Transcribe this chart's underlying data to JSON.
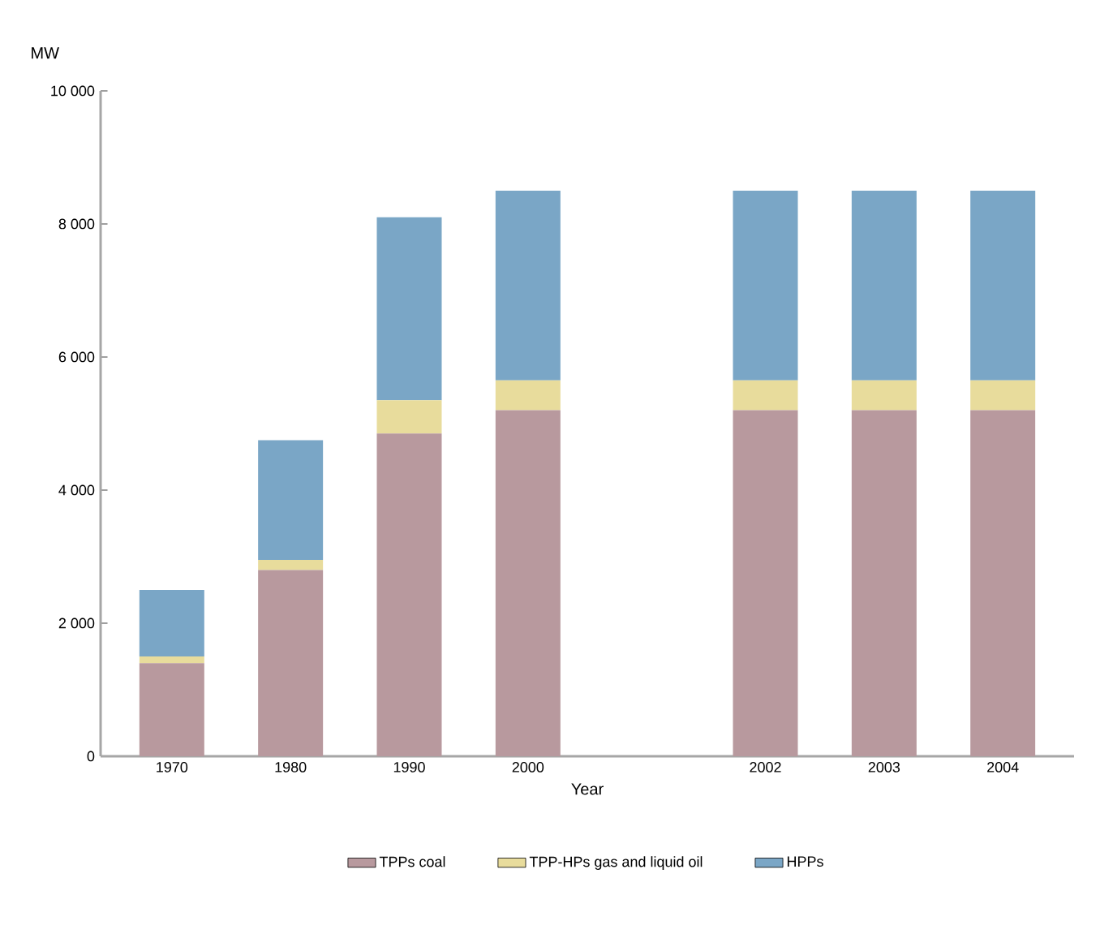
{
  "chart_data": {
    "type": "bar",
    "stacked": true,
    "ylabel": "MW",
    "xlabel": "Year",
    "categories": [
      "1970",
      "1980",
      "1990",
      "2000",
      null,
      "2002",
      "2003",
      "2004"
    ],
    "series": [
      {
        "name": "TPPs coal",
        "color": "#b8999e",
        "values": [
          1400,
          2800,
          4850,
          5200,
          null,
          5200,
          5200,
          5200
        ]
      },
      {
        "name": "TPP-HPs gas and liquid oil",
        "color": "#e8dc9c",
        "values": [
          100,
          150,
          500,
          450,
          null,
          450,
          450,
          450
        ]
      },
      {
        "name": "HPPs",
        "color": "#7aa6c6",
        "values": [
          1000,
          1800,
          2750,
          2850,
          null,
          2850,
          2850,
          2850
        ]
      }
    ],
    "ylim": [
      0,
      10000
    ],
    "yticks": [
      0,
      {
        "value": 2000,
        "label": "2 000"
      },
      {
        "value": 4000,
        "label": "4 000"
      },
      {
        "value": 6000,
        "label": "6 000"
      },
      {
        "value": 8000,
        "label": "8 000"
      },
      {
        "value": 10000,
        "label": "10 000"
      }
    ],
    "grid": false,
    "legend": "bottom"
  }
}
